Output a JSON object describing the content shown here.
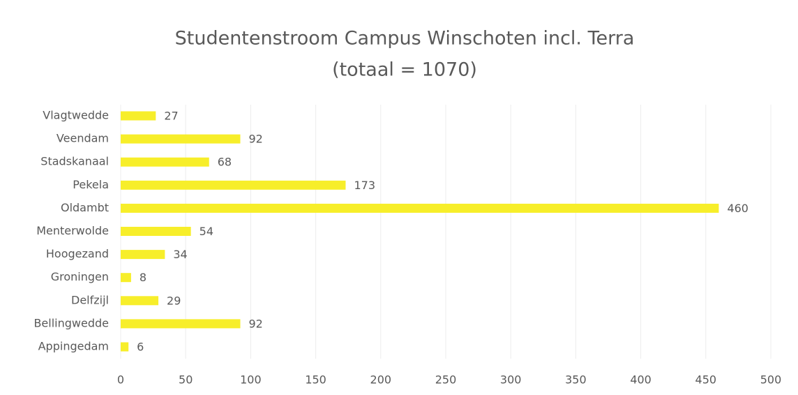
{
  "chart_data": {
    "type": "bar",
    "orientation": "horizontal",
    "title": "Studentenstroom Campus Winschoten incl. Terra",
    "subtitle": "(totaal = 1070)",
    "categories": [
      "Vlagtwedde",
      "Veendam",
      "Stadskanaal",
      "Pekela",
      "Oldambt",
      "Menterwolde",
      "Hoogezand",
      "Groningen",
      "Delfzijl",
      "Bellingwedde",
      "Appingedam"
    ],
    "values": [
      27,
      92,
      68,
      173,
      460,
      54,
      34,
      8,
      29,
      92,
      6
    ],
    "color": "#f7ee2a",
    "xlim": [
      0,
      500
    ],
    "xticks": [
      0,
      50,
      100,
      150,
      200,
      250,
      300,
      350,
      400,
      450,
      500
    ],
    "grid": true
  }
}
